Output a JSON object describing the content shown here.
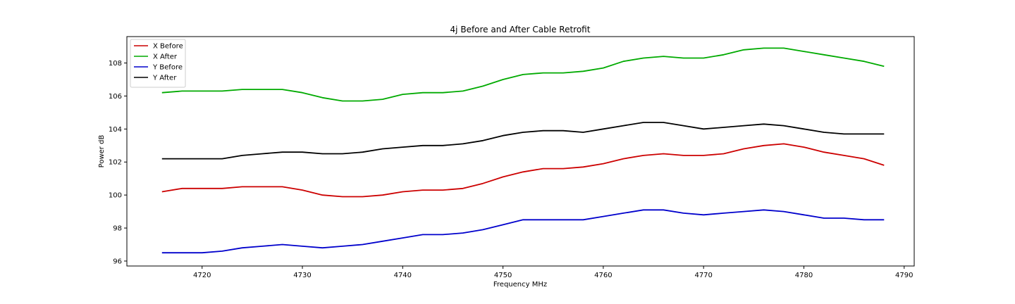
{
  "chart_data": {
    "type": "line",
    "title": "4j Before and After Cable Retrofit",
    "xlabel": "Frequency MHz",
    "ylabel": "Power dB",
    "xlim": [
      4712.5,
      4791
    ],
    "ylim": [
      95.7,
      109.6
    ],
    "xticks": [
      4720,
      4730,
      4740,
      4750,
      4760,
      4770,
      4780,
      4790
    ],
    "yticks": [
      96,
      98,
      100,
      102,
      104,
      106,
      108
    ],
    "grid": false,
    "legend_position": "top-left",
    "x": [
      4716,
      4718,
      4720,
      4722,
      4724,
      4726,
      4728,
      4730,
      4732,
      4734,
      4736,
      4738,
      4740,
      4742,
      4744,
      4746,
      4748,
      4750,
      4752,
      4754,
      4756,
      4758,
      4760,
      4762,
      4764,
      4766,
      4768,
      4770,
      4772,
      4774,
      4776,
      4778,
      4780,
      4782,
      4784,
      4786,
      4788
    ],
    "series": [
      {
        "name": "X Before",
        "color": "#cc0000",
        "values": [
          100.2,
          100.4,
          100.4,
          100.4,
          100.5,
          100.5,
          100.5,
          100.3,
          100.0,
          99.9,
          99.9,
          100.0,
          100.2,
          100.3,
          100.3,
          100.4,
          100.7,
          101.1,
          101.4,
          101.6,
          101.6,
          101.7,
          101.9,
          102.2,
          102.4,
          102.5,
          102.4,
          102.4,
          102.5,
          102.8,
          103.0,
          103.1,
          102.9,
          102.6,
          102.4,
          102.2,
          101.8
        ]
      },
      {
        "name": "X After",
        "color": "#00aa00",
        "values": [
          106.2,
          106.3,
          106.3,
          106.3,
          106.4,
          106.4,
          106.4,
          106.2,
          105.9,
          105.7,
          105.7,
          105.8,
          106.1,
          106.2,
          106.2,
          106.3,
          106.6,
          107.0,
          107.3,
          107.4,
          107.4,
          107.5,
          107.7,
          108.1,
          108.3,
          108.4,
          108.3,
          108.3,
          108.5,
          108.8,
          108.9,
          108.9,
          108.7,
          108.5,
          108.3,
          108.1,
          107.8
        ]
      },
      {
        "name": "Y Before",
        "color": "#0000cc",
        "values": [
          96.5,
          96.5,
          96.5,
          96.6,
          96.8,
          96.9,
          97.0,
          96.9,
          96.8,
          96.9,
          97.0,
          97.2,
          97.4,
          97.6,
          97.6,
          97.7,
          97.9,
          98.2,
          98.5,
          98.5,
          98.5,
          98.5,
          98.7,
          98.9,
          99.1,
          99.1,
          98.9,
          98.8,
          98.9,
          99.0,
          99.1,
          99.0,
          98.8,
          98.6,
          98.6,
          98.5,
          98.5
        ]
      },
      {
        "name": "Y After",
        "color": "#000000",
        "values": [
          102.2,
          102.2,
          102.2,
          102.2,
          102.4,
          102.5,
          102.6,
          102.6,
          102.5,
          102.5,
          102.6,
          102.8,
          102.9,
          103.0,
          103.0,
          103.1,
          103.3,
          103.6,
          103.8,
          103.9,
          103.9,
          103.8,
          104.0,
          104.2,
          104.4,
          104.4,
          104.2,
          104.0,
          104.1,
          104.2,
          104.3,
          104.2,
          104.0,
          103.8,
          103.7,
          103.7,
          103.7
        ]
      }
    ]
  }
}
